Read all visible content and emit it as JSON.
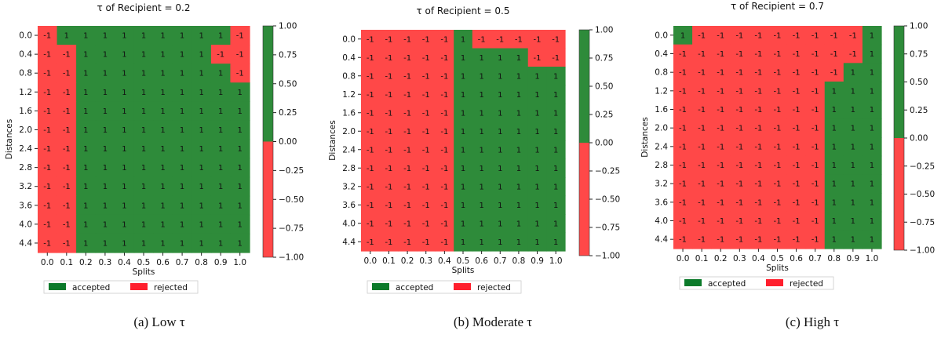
{
  "chart_data": [
    {
      "type": "heatmap",
      "title": "τ of Recipient = 0.2",
      "caption": "(a) Low τ",
      "xlabel": "Splits",
      "ylabel": "Distances",
      "x": [
        "0.0",
        "0.1",
        "0.2",
        "0.3",
        "0.4",
        "0.5",
        "0.6",
        "0.7",
        "0.8",
        "0.9",
        "1.0"
      ],
      "y": [
        "0.0",
        "0.4",
        "0.8",
        "1.2",
        "1.6",
        "2.0",
        "2.4",
        "2.8",
        "3.2",
        "3.6",
        "4.0",
        "4.4"
      ],
      "values": [
        [
          -1,
          1,
          1,
          1,
          1,
          1,
          1,
          1,
          1,
          1,
          -1
        ],
        [
          -1,
          -1,
          1,
          1,
          1,
          1,
          1,
          1,
          1,
          -1,
          -1
        ],
        [
          -1,
          -1,
          1,
          1,
          1,
          1,
          1,
          1,
          1,
          1,
          -1
        ],
        [
          -1,
          -1,
          1,
          1,
          1,
          1,
          1,
          1,
          1,
          1,
          1
        ],
        [
          -1,
          -1,
          1,
          1,
          1,
          1,
          1,
          1,
          1,
          1,
          1
        ],
        [
          -1,
          -1,
          1,
          1,
          1,
          1,
          1,
          1,
          1,
          1,
          1
        ],
        [
          -1,
          -1,
          1,
          1,
          1,
          1,
          1,
          1,
          1,
          1,
          1
        ],
        [
          -1,
          -1,
          1,
          1,
          1,
          1,
          1,
          1,
          1,
          1,
          1
        ],
        [
          -1,
          -1,
          1,
          1,
          1,
          1,
          1,
          1,
          1,
          1,
          1
        ],
        [
          -1,
          -1,
          1,
          1,
          1,
          1,
          1,
          1,
          1,
          1,
          1
        ],
        [
          -1,
          -1,
          1,
          1,
          1,
          1,
          1,
          1,
          1,
          1,
          1
        ],
        [
          -1,
          -1,
          1,
          1,
          1,
          1,
          1,
          1,
          1,
          1,
          1
        ]
      ],
      "colorbar": {
        "range": [
          -1.0,
          1.0
        ],
        "ticks": [
          "1.00",
          "0.75",
          "0.50",
          "0.25",
          "0.00",
          "−0.25",
          "−0.50",
          "−0.75",
          "−1.00"
        ]
      },
      "legend": [
        "accepted",
        "rejected"
      ]
    },
    {
      "type": "heatmap",
      "title": "τ of Recipient = 0.5",
      "caption": "(b) Moderate τ",
      "xlabel": "Splits",
      "ylabel": "Distances",
      "x": [
        "0.0",
        "0.1",
        "0.2",
        "0.3",
        "0.4",
        "0.5",
        "0.6",
        "0.7",
        "0.8",
        "0.9",
        "1.0"
      ],
      "y": [
        "0.0",
        "0.4",
        "0.8",
        "1.2",
        "1.6",
        "2.0",
        "2.4",
        "2.8",
        "3.2",
        "3.6",
        "4.0",
        "4.4"
      ],
      "values": [
        [
          -1,
          -1,
          -1,
          -1,
          -1,
          1,
          -1,
          -1,
          -1,
          -1,
          -1
        ],
        [
          -1,
          -1,
          -1,
          -1,
          -1,
          1,
          1,
          1,
          1,
          -1,
          -1
        ],
        [
          -1,
          -1,
          -1,
          -1,
          -1,
          1,
          1,
          1,
          1,
          1,
          1
        ],
        [
          -1,
          -1,
          -1,
          -1,
          -1,
          1,
          1,
          1,
          1,
          1,
          1
        ],
        [
          -1,
          -1,
          -1,
          -1,
          -1,
          1,
          1,
          1,
          1,
          1,
          1
        ],
        [
          -1,
          -1,
          -1,
          -1,
          -1,
          1,
          1,
          1,
          1,
          1,
          1
        ],
        [
          -1,
          -1,
          -1,
          -1,
          -1,
          1,
          1,
          1,
          1,
          1,
          1
        ],
        [
          -1,
          -1,
          -1,
          -1,
          -1,
          1,
          1,
          1,
          1,
          1,
          1
        ],
        [
          -1,
          -1,
          -1,
          -1,
          -1,
          1,
          1,
          1,
          1,
          1,
          1
        ],
        [
          -1,
          -1,
          -1,
          -1,
          -1,
          1,
          1,
          1,
          1,
          1,
          1
        ],
        [
          -1,
          -1,
          -1,
          -1,
          -1,
          1,
          1,
          1,
          1,
          1,
          1
        ],
        [
          -1,
          -1,
          -1,
          -1,
          -1,
          1,
          1,
          1,
          1,
          1,
          1
        ]
      ],
      "colorbar": {
        "range": [
          -1.0,
          1.0
        ],
        "ticks": [
          "1.00",
          "0.75",
          "0.50",
          "0.25",
          "0.00",
          "−0.25",
          "−0.50",
          "−0.75",
          "−1.00"
        ]
      },
      "legend": [
        "accepted",
        "rejected"
      ]
    },
    {
      "type": "heatmap",
      "title": "τ of Recipient = 0.7",
      "caption": "(c) High τ",
      "xlabel": "Splits",
      "ylabel": "Distances",
      "x": [
        "0.0",
        "0.1",
        "0.2",
        "0.3",
        "0.4",
        "0.5",
        "0.6",
        "0.7",
        "0.8",
        "0.9",
        "1.0"
      ],
      "y": [
        "0.0",
        "0.4",
        "0.8",
        "1.2",
        "1.6",
        "2.0",
        "2.4",
        "2.8",
        "3.2",
        "3.6",
        "4.0",
        "4.4"
      ],
      "values": [
        [
          1,
          -1,
          -1,
          -1,
          -1,
          -1,
          -1,
          -1,
          -1,
          -1,
          1
        ],
        [
          -1,
          -1,
          -1,
          -1,
          -1,
          -1,
          -1,
          -1,
          -1,
          -1,
          1
        ],
        [
          -1,
          -1,
          -1,
          -1,
          -1,
          -1,
          -1,
          -1,
          -1,
          1,
          1
        ],
        [
          -1,
          -1,
          -1,
          -1,
          -1,
          -1,
          -1,
          -1,
          1,
          1,
          1
        ],
        [
          -1,
          -1,
          -1,
          -1,
          -1,
          -1,
          -1,
          -1,
          1,
          1,
          1
        ],
        [
          -1,
          -1,
          -1,
          -1,
          -1,
          -1,
          -1,
          -1,
          1,
          1,
          1
        ],
        [
          -1,
          -1,
          -1,
          -1,
          -1,
          -1,
          -1,
          -1,
          1,
          1,
          1
        ],
        [
          -1,
          -1,
          -1,
          -1,
          -1,
          -1,
          -1,
          -1,
          1,
          1,
          1
        ],
        [
          -1,
          -1,
          -1,
          -1,
          -1,
          -1,
          -1,
          -1,
          1,
          1,
          1
        ],
        [
          -1,
          -1,
          -1,
          -1,
          -1,
          -1,
          -1,
          -1,
          1,
          1,
          1
        ],
        [
          -1,
          -1,
          -1,
          -1,
          -1,
          -1,
          -1,
          -1,
          1,
          1,
          1
        ],
        [
          -1,
          -1,
          -1,
          -1,
          -1,
          -1,
          -1,
          -1,
          1,
          1,
          1
        ]
      ],
      "colorbar": {
        "range": [
          -1.0,
          1.0
        ],
        "ticks": [
          "1.00",
          "0.75",
          "0.50",
          "0.25",
          "0.00",
          "−0.25",
          "−0.50",
          "−0.75",
          "−1.00"
        ]
      },
      "legend": [
        "accepted",
        "rejected"
      ]
    }
  ],
  "colors": {
    "accepted": "#2e8b3a",
    "rejected": "#ff4848",
    "legend_accepted": "#0b7a2a",
    "legend_rejected": "#ff1f2d"
  }
}
